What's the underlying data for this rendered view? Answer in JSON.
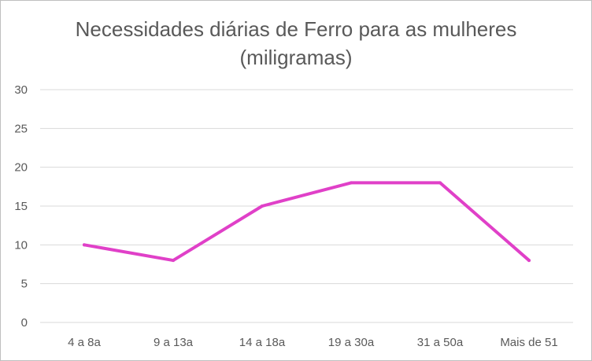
{
  "chart_data": {
    "type": "line",
    "title_lines": [
      "Necessidades diárias de Ferro para as mulheres",
      "(miligramas)"
    ],
    "categories": [
      "4 a 8a",
      "9 a 13a",
      "14 a 18a",
      "19 a 30a",
      "31 a 50a",
      "Mais de 51"
    ],
    "series": [
      {
        "values": [
          10,
          8,
          15,
          18,
          18,
          8
        ],
        "color": "#e040c8"
      }
    ],
    "ylim": [
      0,
      30
    ],
    "yticks": [
      0,
      5,
      10,
      15,
      20,
      25,
      30
    ],
    "grid": true,
    "legend": "none",
    "gridline_color": "#d9d9d9",
    "text_color": "#595959"
  }
}
